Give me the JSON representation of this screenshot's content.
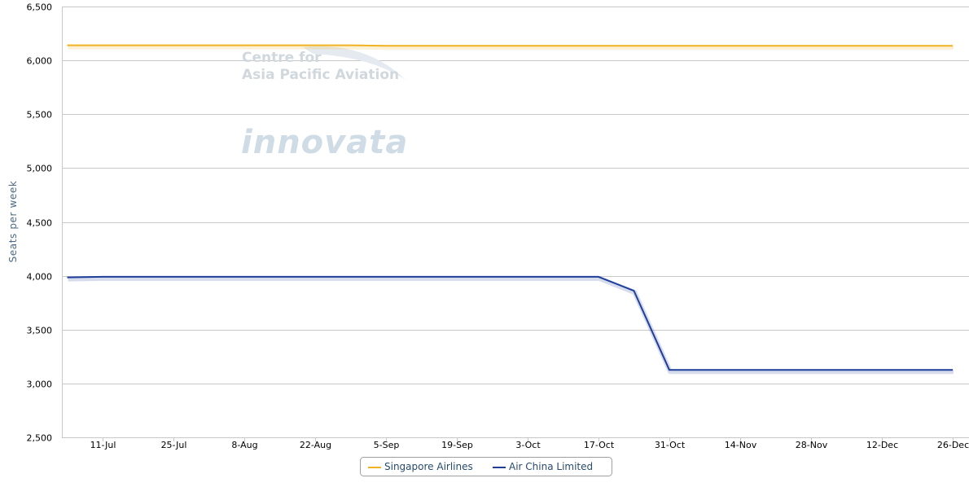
{
  "watermark": {
    "capa_line1": "Centre for",
    "capa_line2": "Asia Pacific Aviation",
    "innovata": "innovata"
  },
  "colors": {
    "singapore": "#F0B322",
    "airchina": "#1F3F9B",
    "grid": "#C8C8C8",
    "axis_label": "#4A6A86",
    "tick": "#000000",
    "watermark": "#D0D8DE",
    "innovata": "#CFDCE6"
  },
  "chart_data": {
    "type": "line",
    "ylabel": "Seats per week",
    "ylim": [
      2500,
      6500
    ],
    "yticks": [
      2500,
      3000,
      3500,
      4000,
      4500,
      5000,
      5500,
      6000,
      6500
    ],
    "ytick_labels": [
      "2,500",
      "3,000",
      "3,500",
      "4,000",
      "4,500",
      "5,000",
      "5,500",
      "6,000",
      "6,500"
    ],
    "xtick_labels": [
      "11-Jul",
      "25-Jul",
      "8-Aug",
      "22-Aug",
      "5-Sep",
      "19-Sep",
      "3-Oct",
      "17-Oct",
      "31-Oct",
      "14-Nov",
      "28-Nov",
      "12-Dec",
      "26-Dec"
    ],
    "xtick_dates": [
      "2011-07-11",
      "2011-07-25",
      "2011-08-08",
      "2011-08-22",
      "2011-09-05",
      "2011-09-19",
      "2011-10-03",
      "2011-10-17",
      "2011-10-31",
      "2011-11-14",
      "2011-11-28",
      "2011-12-12",
      "2011-12-26"
    ],
    "grid": true,
    "legend_position": "bottom-center",
    "series": [
      {
        "name": "Singapore Airlines",
        "color": "#F0B322",
        "points": [
          [
            "2011-07-04",
            6140
          ],
          [
            "2011-08-29",
            6140
          ],
          [
            "2011-09-05",
            6135
          ],
          [
            "2011-12-26",
            6135
          ]
        ]
      },
      {
        "name": "Air China Limited",
        "color": "#1F3F9B",
        "points": [
          [
            "2011-07-04",
            3985
          ],
          [
            "2011-07-11",
            3990
          ],
          [
            "2011-10-17",
            3990
          ],
          [
            "2011-10-24",
            3860
          ],
          [
            "2011-10-31",
            3125
          ],
          [
            "2011-12-26",
            3125
          ]
        ]
      }
    ]
  }
}
